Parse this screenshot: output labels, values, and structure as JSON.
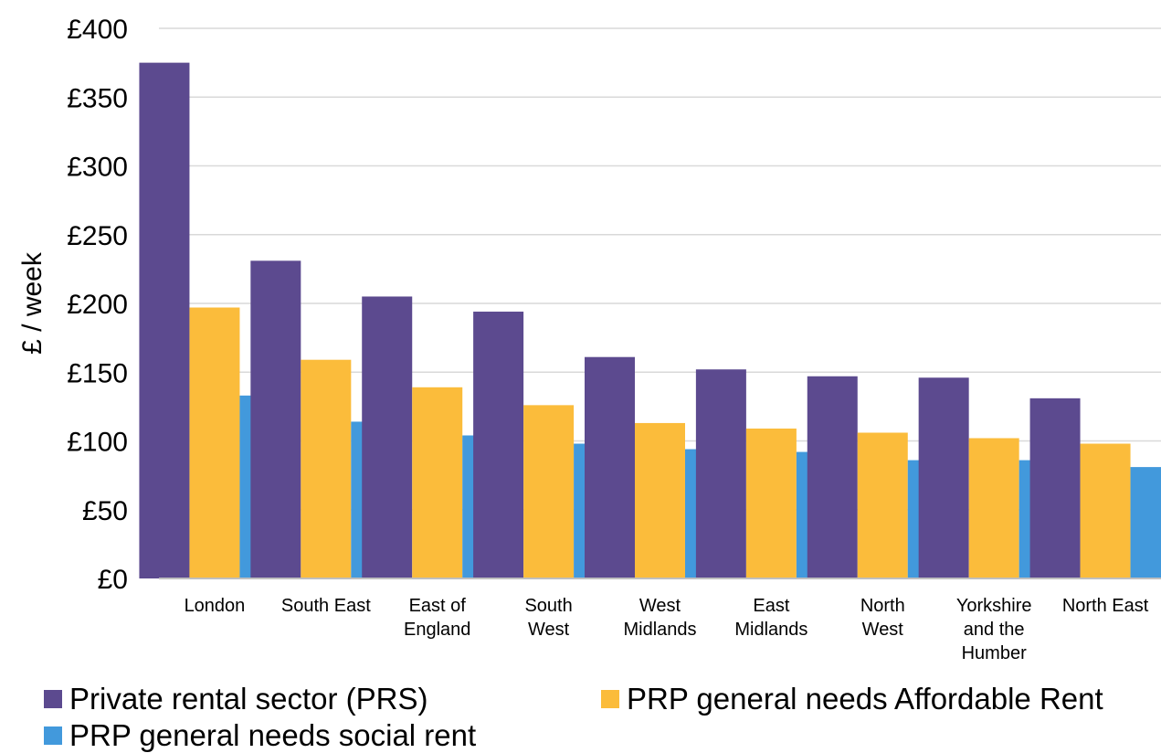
{
  "chart_data": {
    "type": "bar",
    "title": "",
    "xlabel": "",
    "ylabel": "£ / week",
    "ylim": [
      0,
      400
    ],
    "yticks": [
      0,
      50,
      100,
      150,
      200,
      250,
      300,
      350,
      400
    ],
    "ytick_labels": [
      "£0",
      "£50",
      "£100",
      "£150",
      "£200",
      "£250",
      "£300",
      "£350",
      "£400"
    ],
    "grid": true,
    "legend_position": "bottom",
    "categories": [
      [
        "London"
      ],
      [
        "South East"
      ],
      [
        "East of",
        "England"
      ],
      [
        "South",
        "West"
      ],
      [
        "West",
        "Midlands"
      ],
      [
        "East",
        "Midlands"
      ],
      [
        "North",
        "West"
      ],
      [
        "Yorkshire",
        "and the",
        "Humber"
      ],
      [
        "North East"
      ]
    ],
    "series": [
      {
        "name": "Private rental sector (PRS)",
        "color": "#5c4a8f",
        "values": [
          375,
          231,
          205,
          194,
          161,
          152,
          147,
          146,
          131
        ]
      },
      {
        "name": "PRP general needs Affordable Rent",
        "color": "#fbbc3b",
        "values": [
          197,
          159,
          139,
          126,
          113,
          109,
          106,
          102,
          98
        ]
      },
      {
        "name": "PRP general needs social rent",
        "color": "#4299dc",
        "values": [
          133,
          114,
          104,
          98,
          94,
          92,
          86,
          86,
          81
        ]
      }
    ]
  }
}
